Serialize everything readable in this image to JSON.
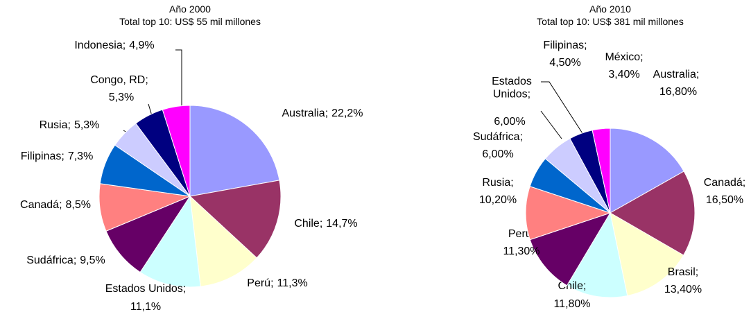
{
  "chart_data": [
    {
      "type": "pie",
      "title": "Año 2000",
      "subtitle": "Total top 10: US$ 55 mil millones",
      "categories": [
        "Australia;",
        "Chile;",
        "Perú;",
        "Estados Unidos;",
        "Sudáfrica;",
        "Canadá;",
        "Filipinas;",
        "Rusia;",
        "Congo, RD;",
        "Indonesia;"
      ],
      "values": [
        22.2,
        14.7,
        11.3,
        11.1,
        9.5,
        8.5,
        7.3,
        5.3,
        5.3,
        4.9
      ],
      "value_labels": [
        "22,2%",
        "14,7%",
        "11,3%",
        "11,1%",
        "9,5%",
        "8,5%",
        "7,3%",
        "5,3%",
        "5,3%",
        "4,9%"
      ],
      "colors": [
        "#9999ff",
        "#993366",
        "#ffffcc",
        "#ccffff",
        "#660066",
        "#ff8080",
        "#0066cc",
        "#ccccff",
        "#000080",
        "#ff00ff"
      ]
    },
    {
      "type": "pie",
      "title": "Año 2010",
      "subtitle": "Total top 10: US$ 381 mil millones",
      "categories": [
        "Australia;",
        "Canadá;",
        "Brasil;",
        "Chile;",
        "Perú;",
        "Rusia;",
        "Sudáfrica;",
        "Estados Unidos;",
        "Filipinas;",
        "México;"
      ],
      "values": [
        16.8,
        16.5,
        13.4,
        11.8,
        11.3,
        10.2,
        6.0,
        6.0,
        4.5,
        3.4
      ],
      "value_labels": [
        "16,80%",
        "16,50%",
        "13,40%",
        "11,80%",
        "11,30%",
        "10,20%",
        "6,00%",
        "6,00%",
        "4,50%",
        "3,40%"
      ],
      "colors": [
        "#9999ff",
        "#993366",
        "#ffffcc",
        "#ccffff",
        "#660066",
        "#ff8080",
        "#0066cc",
        "#ccccff",
        "#000080",
        "#ff00ff"
      ]
    }
  ]
}
